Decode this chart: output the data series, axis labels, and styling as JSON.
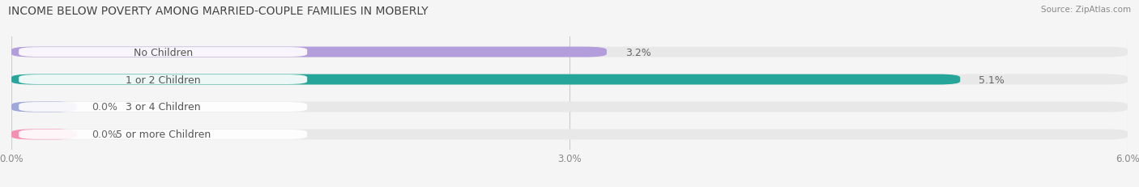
{
  "title": "INCOME BELOW POVERTY AMONG MARRIED-COUPLE FAMILIES IN MOBERLY",
  "source": "Source: ZipAtlas.com",
  "categories": [
    "No Children",
    "1 or 2 Children",
    "3 or 4 Children",
    "5 or more Children"
  ],
  "values": [
    3.2,
    5.1,
    0.0,
    0.0
  ],
  "bar_colors": [
    "#b39ddb",
    "#26a69a",
    "#9fa8da",
    "#f48fb1"
  ],
  "bar_bg_color": "#e8e8e8",
  "xlim": [
    0,
    6.0
  ],
  "xticks": [
    0.0,
    3.0,
    6.0
  ],
  "xtick_labels": [
    "0.0%",
    "3.0%",
    "6.0%"
  ],
  "label_fontsize": 9,
  "title_fontsize": 10,
  "value_fontsize": 9,
  "bar_height": 0.38,
  "background_color": "#f5f5f5",
  "label_bg_color": "#ffffff",
  "label_text_color": "#555555",
  "value_label_color": "#666666"
}
